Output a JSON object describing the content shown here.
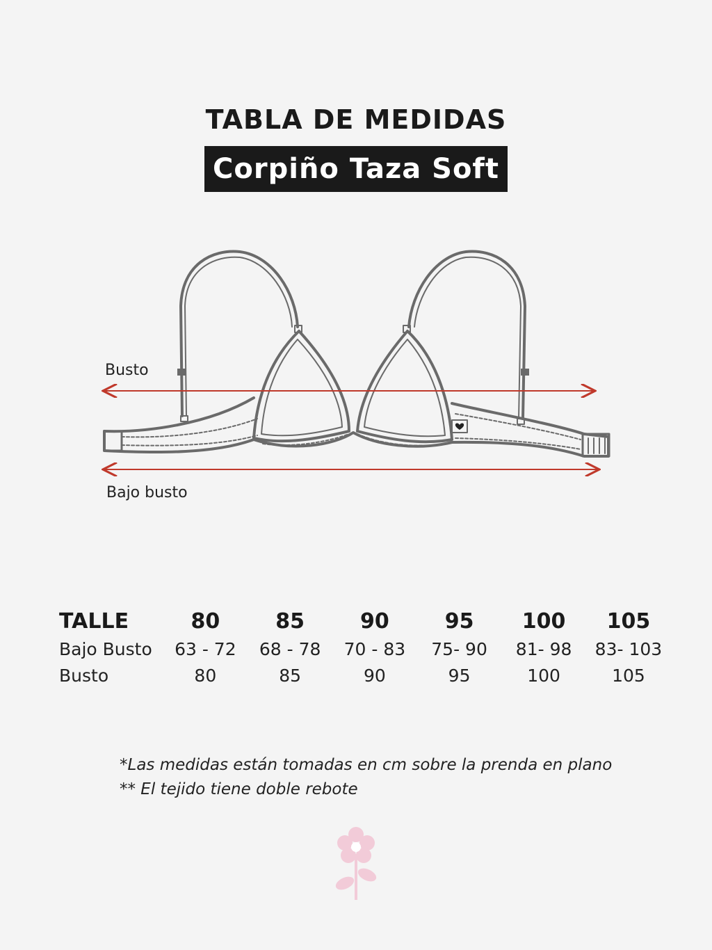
{
  "header": {
    "title": "TABLA DE MEDIDAS",
    "subtitle": "Corpiño Taza Soft"
  },
  "diagram": {
    "busto_label": "Busto",
    "bajo_busto_label": "Bajo busto",
    "arrow_color": "#c0392b",
    "line_color": "#6a6a6a"
  },
  "table": {
    "header_label": "TALLE",
    "sizes": [
      "80",
      "85",
      "90",
      "95",
      "100",
      "105"
    ],
    "rows": [
      {
        "label": "Bajo Busto",
        "values": [
          "63 - 72",
          "68 - 78",
          "70 - 83",
          "75- 90",
          "81- 98",
          "83- 103"
        ]
      },
      {
        "label": "Busto",
        "values": [
          "80",
          "85",
          "90",
          "95",
          "100",
          "105"
        ]
      }
    ]
  },
  "notes": [
    "*Las medidas están tomadas en cm sobre la prenda en plano",
    "** El tejido tiene doble rebote"
  ],
  "decoration": {
    "flower_icon": "flower-icon",
    "flower_color": "#f2cbd8"
  }
}
